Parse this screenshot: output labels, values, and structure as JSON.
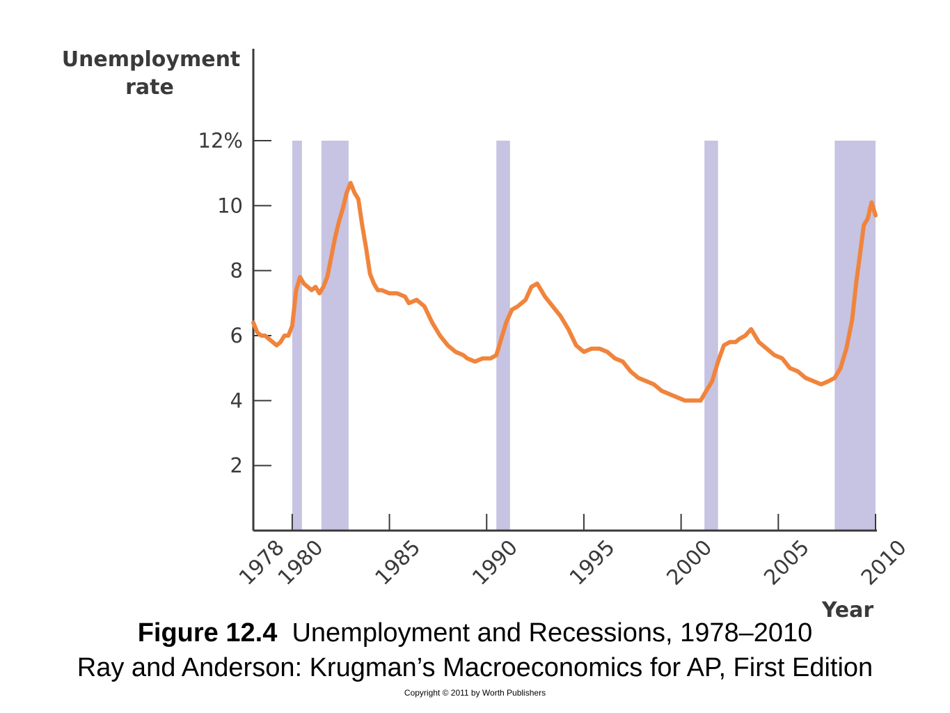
{
  "figure": {
    "label": "Figure 12.4",
    "title": "Unemployment and Recessions, 1978–2010",
    "source": "Ray and Anderson: Krugman’s Macroeconomics for AP, First Edition",
    "copyright": "Copyright © 2011 by Worth Publishers"
  },
  "chart_data": {
    "type": "line",
    "ylabel_line1": "Unemployment",
    "ylabel_line2": "rate",
    "xlabel": "Year",
    "xlim": [
      1978,
      2010
    ],
    "ylim": [
      0,
      12
    ],
    "yticks": [
      {
        "value": 2,
        "label": "2"
      },
      {
        "value": 4,
        "label": "4"
      },
      {
        "value": 6,
        "label": "6"
      },
      {
        "value": 8,
        "label": "8"
      },
      {
        "value": 10,
        "label": "10"
      },
      {
        "value": 12,
        "label": "12%"
      }
    ],
    "xticks": [
      {
        "value": 1978,
        "label": "1978"
      },
      {
        "value": 1980,
        "label": "1980"
      },
      {
        "value": 1985,
        "label": "1985"
      },
      {
        "value": 1990,
        "label": "1990"
      },
      {
        "value": 1995,
        "label": "1995"
      },
      {
        "value": 2000,
        "label": "2000"
      },
      {
        "value": 2005,
        "label": "2005"
      },
      {
        "value": 2010,
        "label": "2010"
      }
    ],
    "recessions": [
      {
        "start": 1980.0,
        "end": 1980.5
      },
      {
        "start": 1981.5,
        "end": 1982.9
      },
      {
        "start": 1990.5,
        "end": 1991.2
      },
      {
        "start": 2001.2,
        "end": 2001.9
      },
      {
        "start": 2007.9,
        "end": 2010.0
      }
    ],
    "series": [
      {
        "color": "#f0843c",
        "shade_color": "#c7c3e2",
        "x": [
          1978.0,
          1978.2,
          1978.4,
          1978.6,
          1978.8,
          1979.0,
          1979.2,
          1979.4,
          1979.6,
          1979.8,
          1980.0,
          1980.2,
          1980.4,
          1980.6,
          1980.8,
          1981.0,
          1981.2,
          1981.4,
          1981.6,
          1981.8,
          1982.0,
          1982.2,
          1982.4,
          1982.6,
          1982.8,
          1983.0,
          1983.2,
          1983.4,
          1983.6,
          1983.8,
          1984.0,
          1984.2,
          1984.4,
          1984.6,
          1985.0,
          1985.4,
          1985.8,
          1986.0,
          1986.4,
          1986.8,
          1987.2,
          1987.6,
          1988.0,
          1988.4,
          1988.8,
          1989.0,
          1989.4,
          1989.8,
          1990.2,
          1990.5,
          1990.8,
          1991.0,
          1991.3,
          1991.6,
          1992.0,
          1992.3,
          1992.6,
          1993.0,
          1993.4,
          1993.8,
          1994.2,
          1994.6,
          1995.0,
          1995.4,
          1995.8,
          1996.2,
          1996.6,
          1997.0,
          1997.4,
          1997.8,
          1998.2,
          1998.6,
          1999.0,
          1999.4,
          1999.8,
          2000.2,
          2000.6,
          2001.0,
          2001.3,
          2001.6,
          2001.9,
          2002.2,
          2002.5,
          2002.8,
          2003.0,
          2003.3,
          2003.6,
          2004.0,
          2004.4,
          2004.8,
          2005.2,
          2005.6,
          2006.0,
          2006.4,
          2006.8,
          2007.2,
          2007.6,
          2007.9,
          2008.2,
          2008.5,
          2008.8,
          2009.0,
          2009.2,
          2009.4,
          2009.6,
          2009.8,
          2010.0
        ],
        "y": [
          6.4,
          6.1,
          6.0,
          6.0,
          5.9,
          5.8,
          5.7,
          5.8,
          6.0,
          6.0,
          6.3,
          7.4,
          7.8,
          7.6,
          7.5,
          7.4,
          7.5,
          7.3,
          7.5,
          7.8,
          8.4,
          9.0,
          9.5,
          9.9,
          10.4,
          10.7,
          10.4,
          10.2,
          9.4,
          8.7,
          7.9,
          7.6,
          7.4,
          7.4,
          7.3,
          7.3,
          7.2,
          7.0,
          7.1,
          6.9,
          6.4,
          6.0,
          5.7,
          5.5,
          5.4,
          5.3,
          5.2,
          5.3,
          5.3,
          5.4,
          6.0,
          6.4,
          6.8,
          6.9,
          7.1,
          7.5,
          7.6,
          7.2,
          6.9,
          6.6,
          6.2,
          5.7,
          5.5,
          5.6,
          5.6,
          5.5,
          5.3,
          5.2,
          4.9,
          4.7,
          4.6,
          4.5,
          4.3,
          4.2,
          4.1,
          4.0,
          4.0,
          4.0,
          4.3,
          4.6,
          5.2,
          5.7,
          5.8,
          5.8,
          5.9,
          6.0,
          6.2,
          5.8,
          5.6,
          5.4,
          5.3,
          5.0,
          4.9,
          4.7,
          4.6,
          4.5,
          4.6,
          4.7,
          5.0,
          5.6,
          6.5,
          7.6,
          8.5,
          9.4,
          9.6,
          10.1,
          9.7
        ]
      }
    ]
  }
}
